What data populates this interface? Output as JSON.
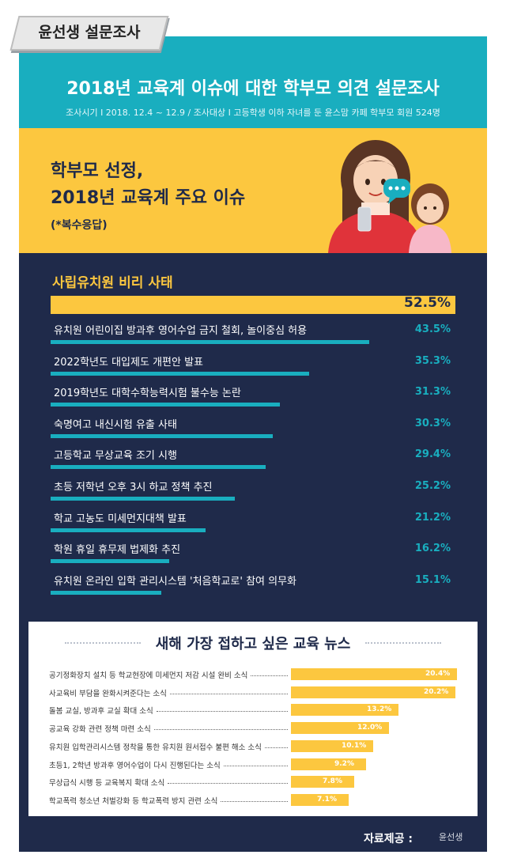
{
  "tag": "윤선생 설문조사",
  "main_title": "2018년 교육계 이슈에 대한 학부모 의견 설문조사",
  "meta": "조사시기 I 2018. 12.4 ~ 12.9 / 조사대상 I 고등학생 이하 자녀를 둔 윤스맘 카페 학부모 회원 524명",
  "section": {
    "title_line1": "학부모 선정,",
    "title_line2": "2018년 교육계 주요 이슈",
    "note": "(*복수응답)"
  },
  "chart_data": [
    {
      "type": "bar",
      "categories": [
        "사립유치원 비리 사태",
        "유치원 어린이집 방과후 영어수업 금지 철회, 놀이중심 허용",
        "2022학년도 대입제도 개편안 발표",
        "2019학년도 대학수학능력시험 불수능 논란",
        "숙명여고 내신시험 유출 사태",
        "고등학교 무상교육 조기 시행",
        "초등 저학년 오후 3시 하교 정책 추진",
        "학교 고농도 미세먼지대책 발표",
        "학원 휴일 휴무제 법제화 추진",
        "유치원 온라인 입학 관리시스템 '처음학교로' 참여 의무화"
      ],
      "values": [
        52.5,
        43.5,
        35.3,
        31.3,
        30.3,
        29.4,
        25.2,
        21.2,
        16.2,
        15.1
      ],
      "labels": [
        "52.5%",
        "43.5%",
        "35.3%",
        "31.3%",
        "30.3%",
        "29.4%",
        "25.2%",
        "21.2%",
        "16.2%",
        "15.1%"
      ],
      "colors": {
        "top": "#fcc73f",
        "bar": "#19aebf"
      }
    },
    {
      "type": "bar",
      "title": "새해 가장 접하고 싶은 교육 뉴스",
      "categories": [
        "공기정화장치 설치 등 학교현장에 미세먼지 저감 시설 완비 소식",
        "사교육비 부담을 완화시켜준다는 소식",
        "돌봄 교실, 방과후 교실 확대 소식",
        "공교육 강화 관련 정책 마련 소식",
        "유치원 입학관리시스템 정착을 통한 유치원 원서접수 불편 해소 소식",
        "초등1, 2학년 방과후 영어수업이 다시 진행된다는 소식",
        "무상급식 시행 등 교육복지 확대 소식",
        "학교폭력 청소년 처벌강화 등 학교폭력 방지 관련 소식"
      ],
      "values": [
        20.4,
        20.2,
        13.2,
        12.0,
        10.1,
        9.2,
        7.8,
        7.1
      ],
      "labels": [
        "20.4%",
        "20.2%",
        "13.2%",
        "12.0%",
        "10.1%",
        "9.2%",
        "7.8%",
        "7.1%"
      ],
      "colors": {
        "bar": "#fcc73f"
      }
    }
  ],
  "footer": {
    "credit": "자료제공 :",
    "brand": "윤선생"
  }
}
